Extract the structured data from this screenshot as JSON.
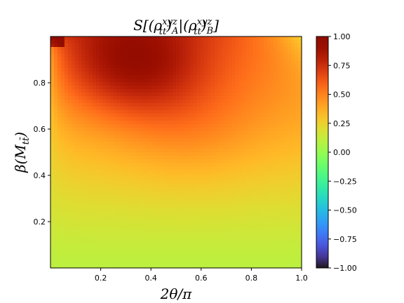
{
  "chart_data": {
    "type": "heatmap",
    "title_parts": [
      "S[(ρ",
      "xyz",
      "tt",
      ")",
      "A",
      "|(ρ",
      "xyz",
      "tt",
      ")",
      "B",
      "]"
    ],
    "xlabel": "2θ/π",
    "ylabel_parts": [
      "β(M",
      "tt̄",
      ")"
    ],
    "xlim": [
      0.0,
      1.0
    ],
    "ylim": [
      0.0,
      1.0
    ],
    "x_ticks": [
      0.2,
      0.4,
      0.6,
      0.8,
      1.0
    ],
    "x_tick_labels": [
      "0.2",
      "0.4",
      "0.6",
      "0.8",
      "1.0"
    ],
    "y_ticks": [
      0.2,
      0.4,
      0.6,
      0.8
    ],
    "y_tick_labels": [
      "0.2",
      "0.4",
      "0.6",
      "0.8"
    ],
    "colorbar": {
      "range": [
        -1.0,
        1.0
      ],
      "ticks": [
        1.0,
        0.75,
        0.5,
        0.25,
        0.0,
        -0.25,
        -0.5,
        -0.75,
        -1.0
      ],
      "tick_labels": [
        "1.00",
        "0.75",
        "0.50",
        "0.25",
        "0.00",
        "−0.25",
        "−0.50",
        "−0.75",
        "−1.00"
      ],
      "colormap": "turbo"
    },
    "field_description": "value ~0.1 at low beta, rises to ~0.6 mid, peak ~0.95 near x=0.35,y=0.9; corners x=0 and x=1 at high beta ~0.2",
    "grid": false
  }
}
